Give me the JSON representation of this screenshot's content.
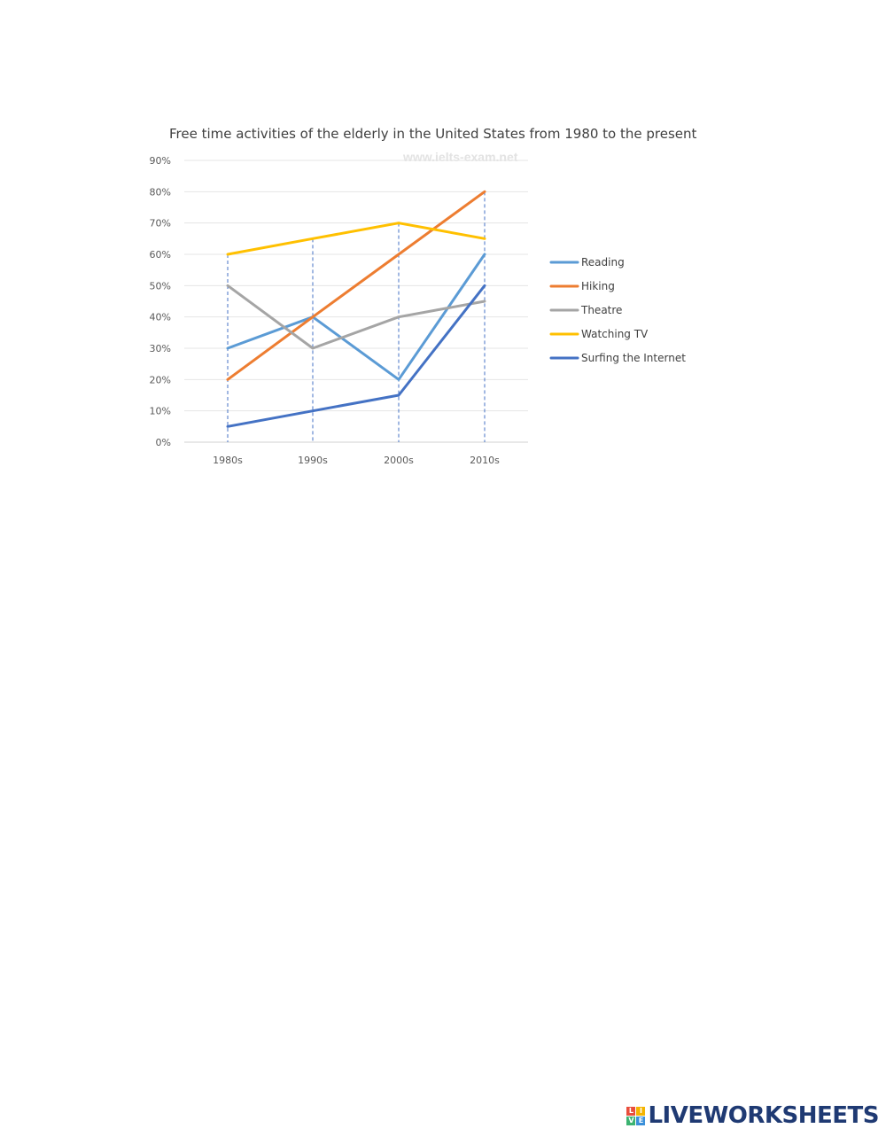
{
  "chart_data": {
    "type": "line",
    "title": "Free time activities of the elderly in the United States from 1980 to the present",
    "watermark": "www.ielts-exam.net",
    "categories": [
      "1980s",
      "1990s",
      "2000s",
      "2010s"
    ],
    "y_ticks": [
      "0%",
      "10%",
      "20%",
      "30%",
      "40%",
      "50%",
      "60%",
      "70%",
      "80%",
      "90%"
    ],
    "ylim": [
      0,
      90
    ],
    "grid": true,
    "legend_position": "right",
    "series": [
      {
        "name": "Reading",
        "color": "#5b9bd5",
        "values": [
          30,
          40,
          20,
          60
        ]
      },
      {
        "name": "Hiking",
        "color": "#ed7d31",
        "values": [
          20,
          40,
          60,
          80
        ]
      },
      {
        "name": "Theatre",
        "color": "#a5a5a5",
        "values": [
          50,
          30,
          40,
          45
        ]
      },
      {
        "name": "Watching TV",
        "color": "#ffc000",
        "values": [
          60,
          65,
          70,
          65
        ]
      },
      {
        "name": "Surfing the Internet",
        "color": "#4472c4",
        "values": [
          5,
          10,
          15,
          50
        ]
      }
    ]
  },
  "branding": {
    "logo_letters": [
      "L",
      "I",
      "V",
      "E"
    ],
    "logo_colors": [
      "#e94e3c",
      "#f4b400",
      "#3cb371",
      "#3a8fd9"
    ],
    "name": "LIVEWORKSHEETS"
  }
}
